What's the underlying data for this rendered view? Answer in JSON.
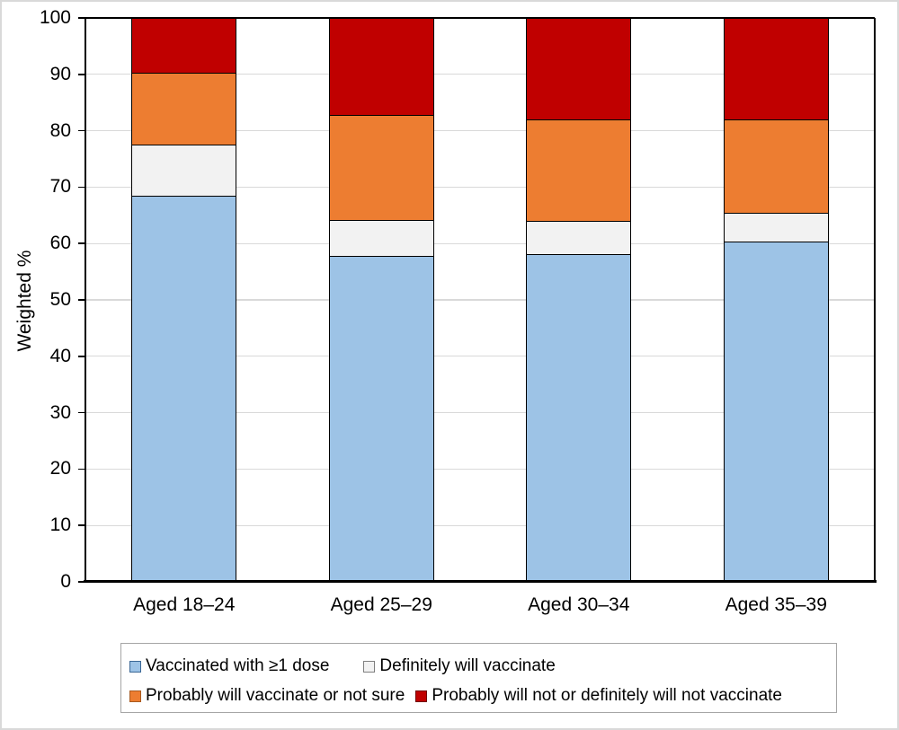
{
  "chart_data": {
    "type": "bar",
    "stacked": true,
    "orientation": "vertical",
    "title": "",
    "xlabel": "",
    "ylabel": "Weighted %",
    "ylim": [
      0,
      100
    ],
    "yticks": [
      0,
      10,
      20,
      30,
      40,
      50,
      60,
      70,
      80,
      90,
      100
    ],
    "grid": true,
    "legend_position": "bottom",
    "categories": [
      "Aged 18–24",
      "Aged 25–29",
      "Aged 30–34",
      "Aged 35–39"
    ],
    "series": [
      {
        "name": "Vaccinated with ≥1 dose",
        "color": "#9DC3E6",
        "swatch_border": "#3A6795",
        "values": [
          68.4,
          57.6,
          58.0,
          60.2
        ]
      },
      {
        "name": "Definitely will vaccinate",
        "color": "#F2F2F2",
        "swatch_border": "#7F7F7F",
        "values": [
          9.1,
          6.5,
          5.9,
          5.1
        ]
      },
      {
        "name": "Probably will vaccinate or not sure",
        "color": "#ED7D31",
        "swatch_border": "#A85A20",
        "values": [
          12.7,
          18.7,
          18.0,
          16.6
        ]
      },
      {
        "name": "Probably will not or definitely will not vaccinate",
        "color": "#C00000",
        "swatch_border": "#700000",
        "values": [
          9.8,
          17.2,
          18.1,
          18.1
        ]
      }
    ],
    "cumulative_tops": {
      "Aged 18–24": [
        68.4,
        77.5,
        90.2,
        100
      ],
      "Aged 25–29": [
        57.6,
        64.1,
        82.8,
        100
      ],
      "Aged 30–34": [
        58.0,
        63.9,
        81.9,
        100
      ],
      "Aged 35–39": [
        60.2,
        65.3,
        81.9,
        100
      ]
    }
  },
  "colors": {
    "bar_border": "#000000",
    "gridline": "#D9D9D9",
    "axis": "#000000",
    "legend_border": "#A6A6A6",
    "outer_frame_border": "#D9D9D9",
    "background": "#FFFFFF"
  }
}
